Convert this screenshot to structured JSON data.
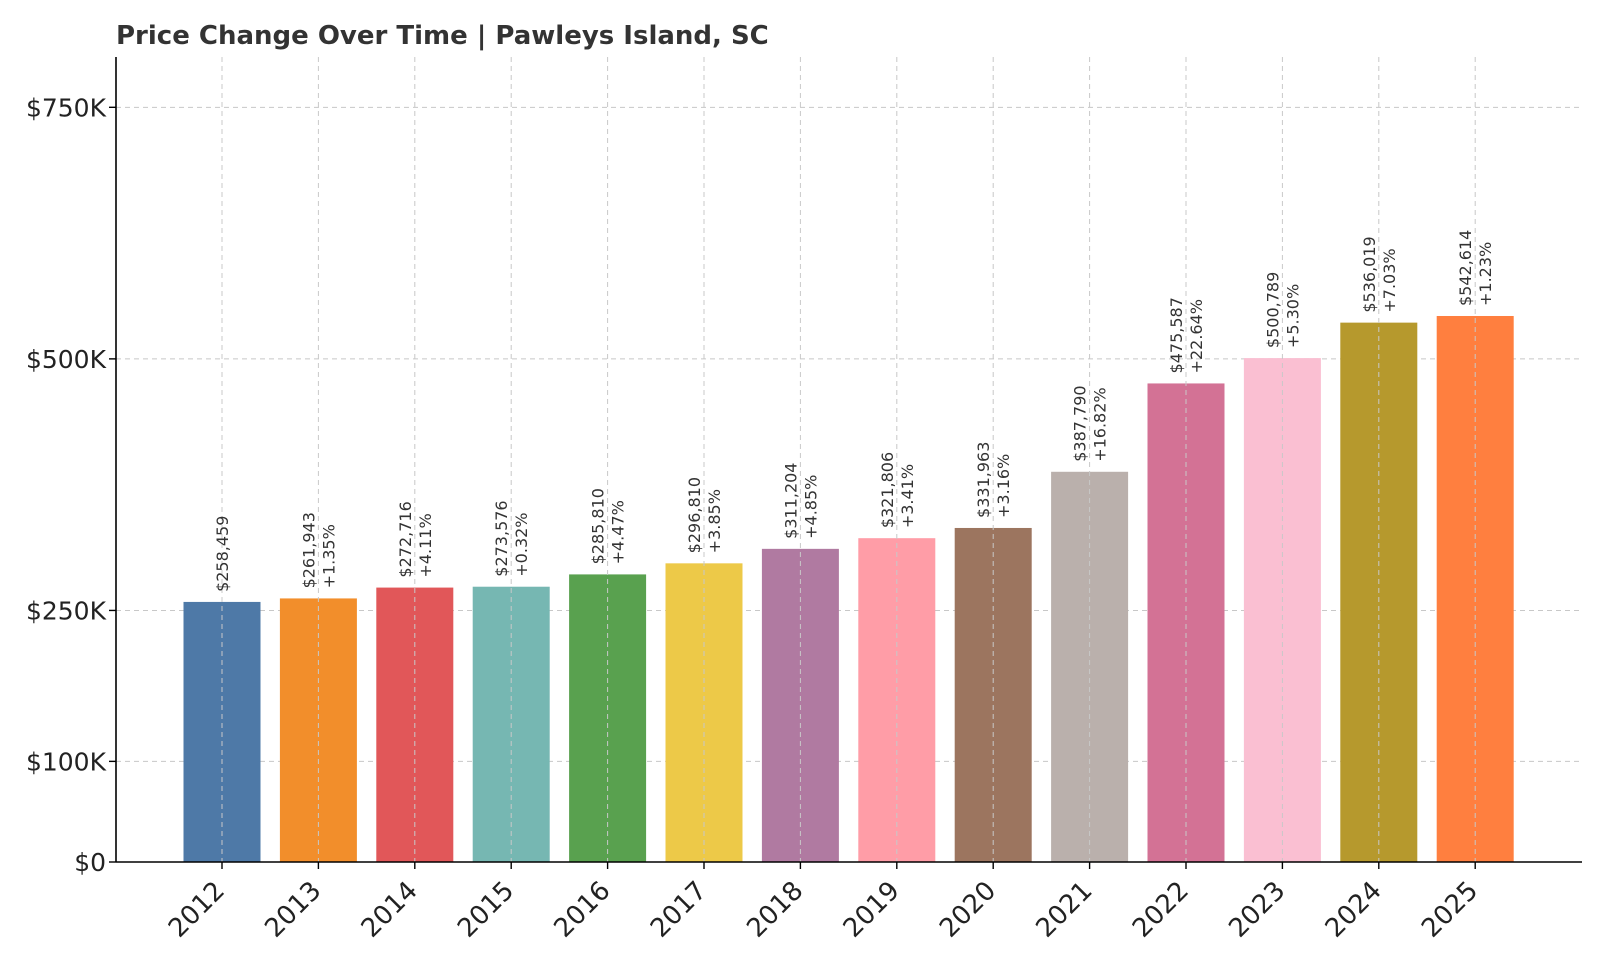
{
  "chart_data": {
    "type": "bar",
    "title": "Price Change Over Time | Pawleys Island, SC",
    "xlabel": "",
    "ylabel": "",
    "categories": [
      "2012",
      "2013",
      "2014",
      "2015",
      "2016",
      "2017",
      "2018",
      "2019",
      "2020",
      "2021",
      "2022",
      "2023",
      "2024",
      "2025"
    ],
    "values": [
      258459,
      261943,
      272716,
      273576,
      285810,
      296810,
      311204,
      321806,
      331963,
      387790,
      475587,
      500789,
      536019,
      542614
    ],
    "value_labels": [
      "$258,459",
      "$261,943",
      "$272,716",
      "$273,576",
      "$285,810",
      "$296,810",
      "$311,204",
      "$321,806",
      "$331,963",
      "$387,790",
      "$475,587",
      "$500,789",
      "$536,019",
      "$542,614"
    ],
    "change_labels": [
      "",
      "+1.35%",
      "+4.11%",
      "+0.32%",
      "+4.47%",
      "+3.85%",
      "+4.85%",
      "+3.41%",
      "+3.16%",
      "+16.82%",
      "+22.64%",
      "+5.30%",
      "+7.03%",
      "+1.23%"
    ],
    "colors": [
      "#4e79a7",
      "#f28e2b",
      "#e15759",
      "#76b7b2",
      "#59a14f",
      "#edc948",
      "#b07aa1",
      "#ff9da7",
      "#9c755f",
      "#bab0ac",
      "#d37295",
      "#fabfd2",
      "#b6992d",
      "#ff7f3f"
    ],
    "yticks": [
      0,
      100000,
      250000,
      500000,
      750000
    ],
    "ytick_labels": [
      "$0",
      "$100K",
      "$250K",
      "$500K",
      "$750K"
    ],
    "ylim": [
      0,
      800000
    ],
    "grid": true
  }
}
